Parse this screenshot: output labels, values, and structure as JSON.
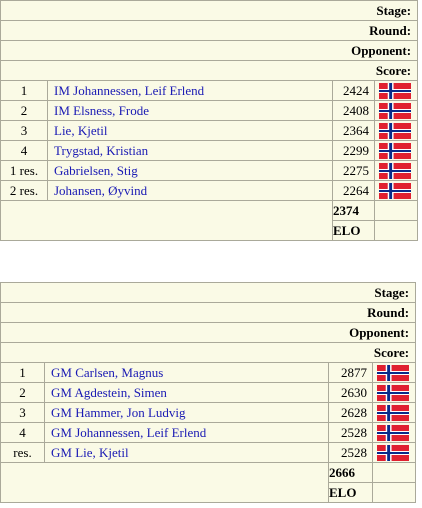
{
  "team1": {
    "labels": {
      "stage": "Stage:",
      "round": "Round:",
      "opponent": "Opponent:",
      "score": "Score:"
    },
    "players": [
      {
        "board": "1",
        "name": "IM Johannessen, Leif Erlend",
        "rating": "2424"
      },
      {
        "board": "2",
        "name": "IM Elsness, Frode",
        "rating": "2408"
      },
      {
        "board": "3",
        "name": "Lie, Kjetil",
        "rating": "2364"
      },
      {
        "board": "4",
        "name": "Trygstad, Kristian",
        "rating": "2299"
      },
      {
        "board": "1 res.",
        "name": "Gabrielsen, Stig",
        "rating": "2275"
      },
      {
        "board": "2 res.",
        "name": "Johansen, Øyvind",
        "rating": "2264"
      }
    ],
    "average": "2374",
    "elo_label": "ELO"
  },
  "team2": {
    "labels": {
      "stage": "Stage:",
      "round": "Round:",
      "opponent": "Opponent:",
      "score": "Score:"
    },
    "players": [
      {
        "board": "1",
        "name": "GM Carlsen, Magnus",
        "rating": "2877"
      },
      {
        "board": "2",
        "name": "GM Agdestein, Simen",
        "rating": "2630"
      },
      {
        "board": "3",
        "name": "GM Hammer, Jon Ludvig",
        "rating": "2628"
      },
      {
        "board": "4",
        "name": "GM Johannessen, Leif Erlend",
        "rating": "2528"
      },
      {
        "board": "res.",
        "name": "GM Lie, Kjetil",
        "rating": "2528"
      }
    ],
    "average": "2666",
    "elo_label": "ELO"
  },
  "flag_icon": "norway-flag-icon",
  "colors": {
    "row_bg": "#fafae6",
    "grid": "#aaa99a",
    "link": "#1a1ab4",
    "flag_red": "#e02030",
    "flag_blue": "#0a2a8a"
  }
}
